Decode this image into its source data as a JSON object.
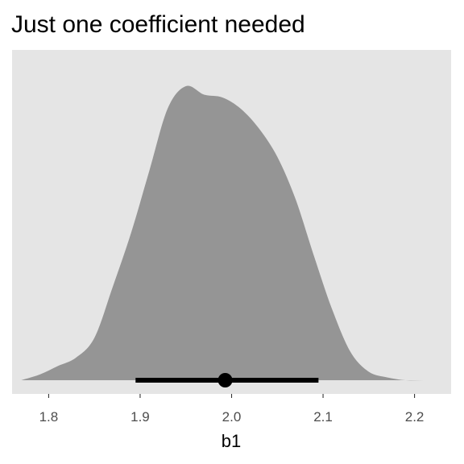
{
  "chart_data": {
    "type": "area",
    "title": "Just one coefficient needed",
    "xlabel": "b1",
    "ylabel": "",
    "xlim": [
      1.76,
      2.24
    ],
    "ylim": [
      0,
      1.08
    ],
    "x_ticks": [
      "1.8",
      "1.9",
      "2.0",
      "2.1",
      "2.2"
    ],
    "x_tick_values": [
      1.8,
      1.9,
      2.0,
      2.1,
      2.2
    ],
    "grid": false,
    "legend": "none",
    "density": {
      "x": [
        1.77,
        1.79,
        1.81,
        1.83,
        1.85,
        1.87,
        1.89,
        1.91,
        1.93,
        1.95,
        1.97,
        1.99,
        2.01,
        2.03,
        2.05,
        2.07,
        2.09,
        2.11,
        2.13,
        2.15,
        2.17,
        2.19,
        2.21,
        2.23
      ],
      "y": [
        0.0,
        0.02,
        0.05,
        0.08,
        0.15,
        0.33,
        0.52,
        0.74,
        0.96,
        1.04,
        1.01,
        1.0,
        0.96,
        0.89,
        0.79,
        0.64,
        0.44,
        0.25,
        0.1,
        0.03,
        0.01,
        0.0,
        0.0,
        0.0
      ]
    },
    "interval": {
      "low": 1.895,
      "high": 2.095
    },
    "point_estimate": 1.993,
    "colors": {
      "panel": "#e5e5e5",
      "fill": "#959595",
      "interval": "#000000"
    }
  }
}
